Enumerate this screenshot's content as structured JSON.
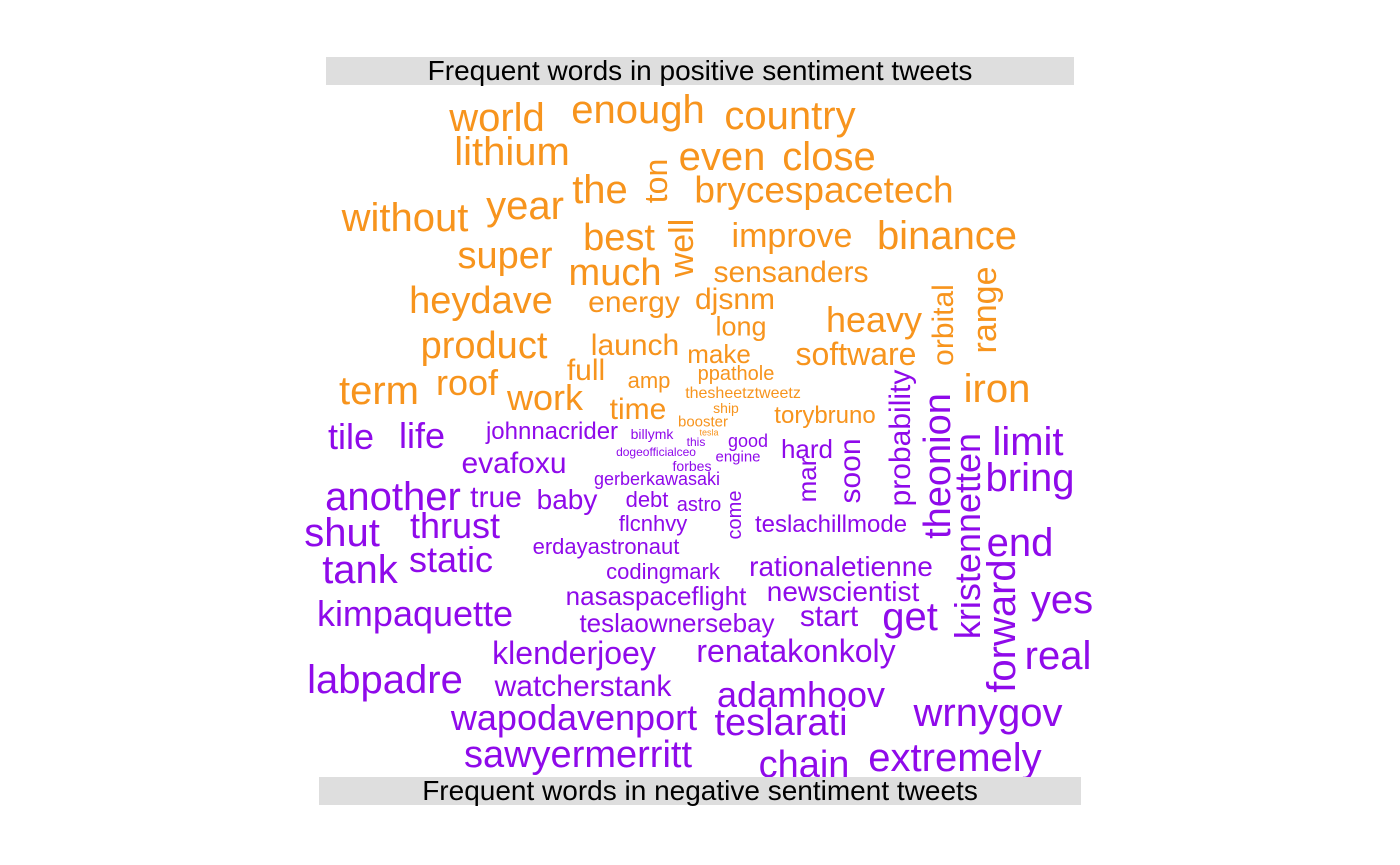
{
  "chart_data": {
    "type": "wordcloud",
    "colors": {
      "positive": "#F7941D",
      "negative": "#8F0AEA"
    },
    "panels": [
      {
        "sentiment": "positive",
        "title": "Frequent words in positive sentiment tweets"
      },
      {
        "sentiment": "negative",
        "title": "Frequent words in negative sentiment tweets"
      }
    ],
    "words": [
      {
        "text": "world",
        "s": "positive",
        "r": 0
      },
      {
        "text": "enough",
        "s": "positive",
        "r": 0
      },
      {
        "text": "country",
        "s": "positive",
        "r": 0
      },
      {
        "text": "lithium",
        "s": "positive",
        "r": 0
      },
      {
        "text": "ton",
        "s": "positive",
        "r": 1
      },
      {
        "text": "even",
        "s": "positive",
        "r": 0
      },
      {
        "text": "close",
        "s": "positive",
        "r": 0
      },
      {
        "text": "the",
        "s": "positive",
        "r": 0
      },
      {
        "text": "brycespacetech",
        "s": "positive",
        "r": 0
      },
      {
        "text": "year",
        "s": "positive",
        "r": 0
      },
      {
        "text": "without",
        "s": "positive",
        "r": 0
      },
      {
        "text": "best",
        "s": "positive",
        "r": 0
      },
      {
        "text": "well",
        "s": "positive",
        "r": 1
      },
      {
        "text": "improve",
        "s": "positive",
        "r": 0
      },
      {
        "text": "binance",
        "s": "positive",
        "r": 0
      },
      {
        "text": "super",
        "s": "positive",
        "r": 0
      },
      {
        "text": "much",
        "s": "positive",
        "r": 0
      },
      {
        "text": "sensanders",
        "s": "positive",
        "r": 0
      },
      {
        "text": "range",
        "s": "positive",
        "r": 1
      },
      {
        "text": "orbital",
        "s": "positive",
        "r": 1
      },
      {
        "text": "heydave",
        "s": "positive",
        "r": 0
      },
      {
        "text": "energy",
        "s": "positive",
        "r": 0
      },
      {
        "text": "djsnm",
        "s": "positive",
        "r": 0
      },
      {
        "text": "heavy",
        "s": "positive",
        "r": 0
      },
      {
        "text": "long",
        "s": "positive",
        "r": 0
      },
      {
        "text": "product",
        "s": "positive",
        "r": 0
      },
      {
        "text": "launch",
        "s": "positive",
        "r": 0
      },
      {
        "text": "make",
        "s": "positive",
        "r": 0
      },
      {
        "text": "software",
        "s": "positive",
        "r": 0
      },
      {
        "text": "full",
        "s": "positive",
        "r": 0
      },
      {
        "text": "ppathole",
        "s": "positive",
        "r": 0
      },
      {
        "text": "term",
        "s": "positive",
        "r": 0
      },
      {
        "text": "roof",
        "s": "positive",
        "r": 0
      },
      {
        "text": "amp",
        "s": "positive",
        "r": 0
      },
      {
        "text": "iron",
        "s": "positive",
        "r": 0
      },
      {
        "text": "work",
        "s": "positive",
        "r": 0
      },
      {
        "text": "thesheetztweetz",
        "s": "positive",
        "r": 0
      },
      {
        "text": "time",
        "s": "positive",
        "r": 0
      },
      {
        "text": "ship",
        "s": "positive",
        "r": 0
      },
      {
        "text": "torybruno",
        "s": "positive",
        "r": 0
      },
      {
        "text": "booster",
        "s": "positive",
        "r": 0
      },
      {
        "text": "tesla",
        "s": "positive",
        "r": 0
      },
      {
        "text": "tile",
        "s": "negative",
        "r": 0
      },
      {
        "text": "life",
        "s": "negative",
        "r": 0
      },
      {
        "text": "johnnacrider",
        "s": "negative",
        "r": 0
      },
      {
        "text": "billymk",
        "s": "negative",
        "r": 0
      },
      {
        "text": "this",
        "s": "negative",
        "r": 0
      },
      {
        "text": "good",
        "s": "negative",
        "r": 0
      },
      {
        "text": "hard",
        "s": "negative",
        "r": 0
      },
      {
        "text": "probability",
        "s": "negative",
        "r": 1
      },
      {
        "text": "theonion",
        "s": "negative",
        "r": 1
      },
      {
        "text": "limit",
        "s": "negative",
        "r": 0
      },
      {
        "text": "evafoxu",
        "s": "negative",
        "r": 0
      },
      {
        "text": "dogeofficialceo",
        "s": "negative",
        "r": 0
      },
      {
        "text": "engine",
        "s": "negative",
        "r": 0
      },
      {
        "text": "forbes",
        "s": "negative",
        "r": 0
      },
      {
        "text": "soon",
        "s": "negative",
        "r": 1
      },
      {
        "text": "mar",
        "s": "negative",
        "r": 1
      },
      {
        "text": "bring",
        "s": "negative",
        "r": 0
      },
      {
        "text": "gerberkawasaki",
        "s": "negative",
        "r": 0
      },
      {
        "text": "another",
        "s": "negative",
        "r": 0
      },
      {
        "text": "true",
        "s": "negative",
        "r": 0
      },
      {
        "text": "baby",
        "s": "negative",
        "r": 0
      },
      {
        "text": "debt",
        "s": "negative",
        "r": 0
      },
      {
        "text": "astro",
        "s": "negative",
        "r": 0
      },
      {
        "text": "come",
        "s": "negative",
        "r": 1
      },
      {
        "text": "kristennetten",
        "s": "negative",
        "r": 1
      },
      {
        "text": "shut",
        "s": "negative",
        "r": 0
      },
      {
        "text": "thrust",
        "s": "negative",
        "r": 0
      },
      {
        "text": "flcnhvy",
        "s": "negative",
        "r": 0
      },
      {
        "text": "teslachillmode",
        "s": "negative",
        "r": 0
      },
      {
        "text": "end",
        "s": "negative",
        "r": 0
      },
      {
        "text": "erdayastronaut",
        "s": "negative",
        "r": 0
      },
      {
        "text": "static",
        "s": "negative",
        "r": 0
      },
      {
        "text": "tank",
        "s": "negative",
        "r": 0
      },
      {
        "text": "rationaletienne",
        "s": "negative",
        "r": 0
      },
      {
        "text": "codingmark",
        "s": "negative",
        "r": 0
      },
      {
        "text": "forward",
        "s": "negative",
        "r": 1
      },
      {
        "text": "newscientist",
        "s": "negative",
        "r": 0
      },
      {
        "text": "nasaspaceflight",
        "s": "negative",
        "r": 0
      },
      {
        "text": "yes",
        "s": "negative",
        "r": 0
      },
      {
        "text": "kimpaquette",
        "s": "negative",
        "r": 0
      },
      {
        "text": "start",
        "s": "negative",
        "r": 0
      },
      {
        "text": "get",
        "s": "negative",
        "r": 0
      },
      {
        "text": "teslaownersebay",
        "s": "negative",
        "r": 0
      },
      {
        "text": "renatakonkoly",
        "s": "negative",
        "r": 0
      },
      {
        "text": "klenderjoey",
        "s": "negative",
        "r": 0
      },
      {
        "text": "real",
        "s": "negative",
        "r": 0
      },
      {
        "text": "labpadre",
        "s": "negative",
        "r": 0
      },
      {
        "text": "watcherstank",
        "s": "negative",
        "r": 0
      },
      {
        "text": "adamhoov",
        "s": "negative",
        "r": 0
      },
      {
        "text": "wrnygov",
        "s": "negative",
        "r": 0
      },
      {
        "text": "wapodavenport",
        "s": "negative",
        "r": 0
      },
      {
        "text": "teslarati",
        "s": "negative",
        "r": 0
      },
      {
        "text": "sawyermerritt",
        "s": "negative",
        "r": 0
      },
      {
        "text": "chain",
        "s": "negative",
        "r": 0
      },
      {
        "text": "extremely",
        "s": "negative",
        "r": 0
      }
    ]
  }
}
